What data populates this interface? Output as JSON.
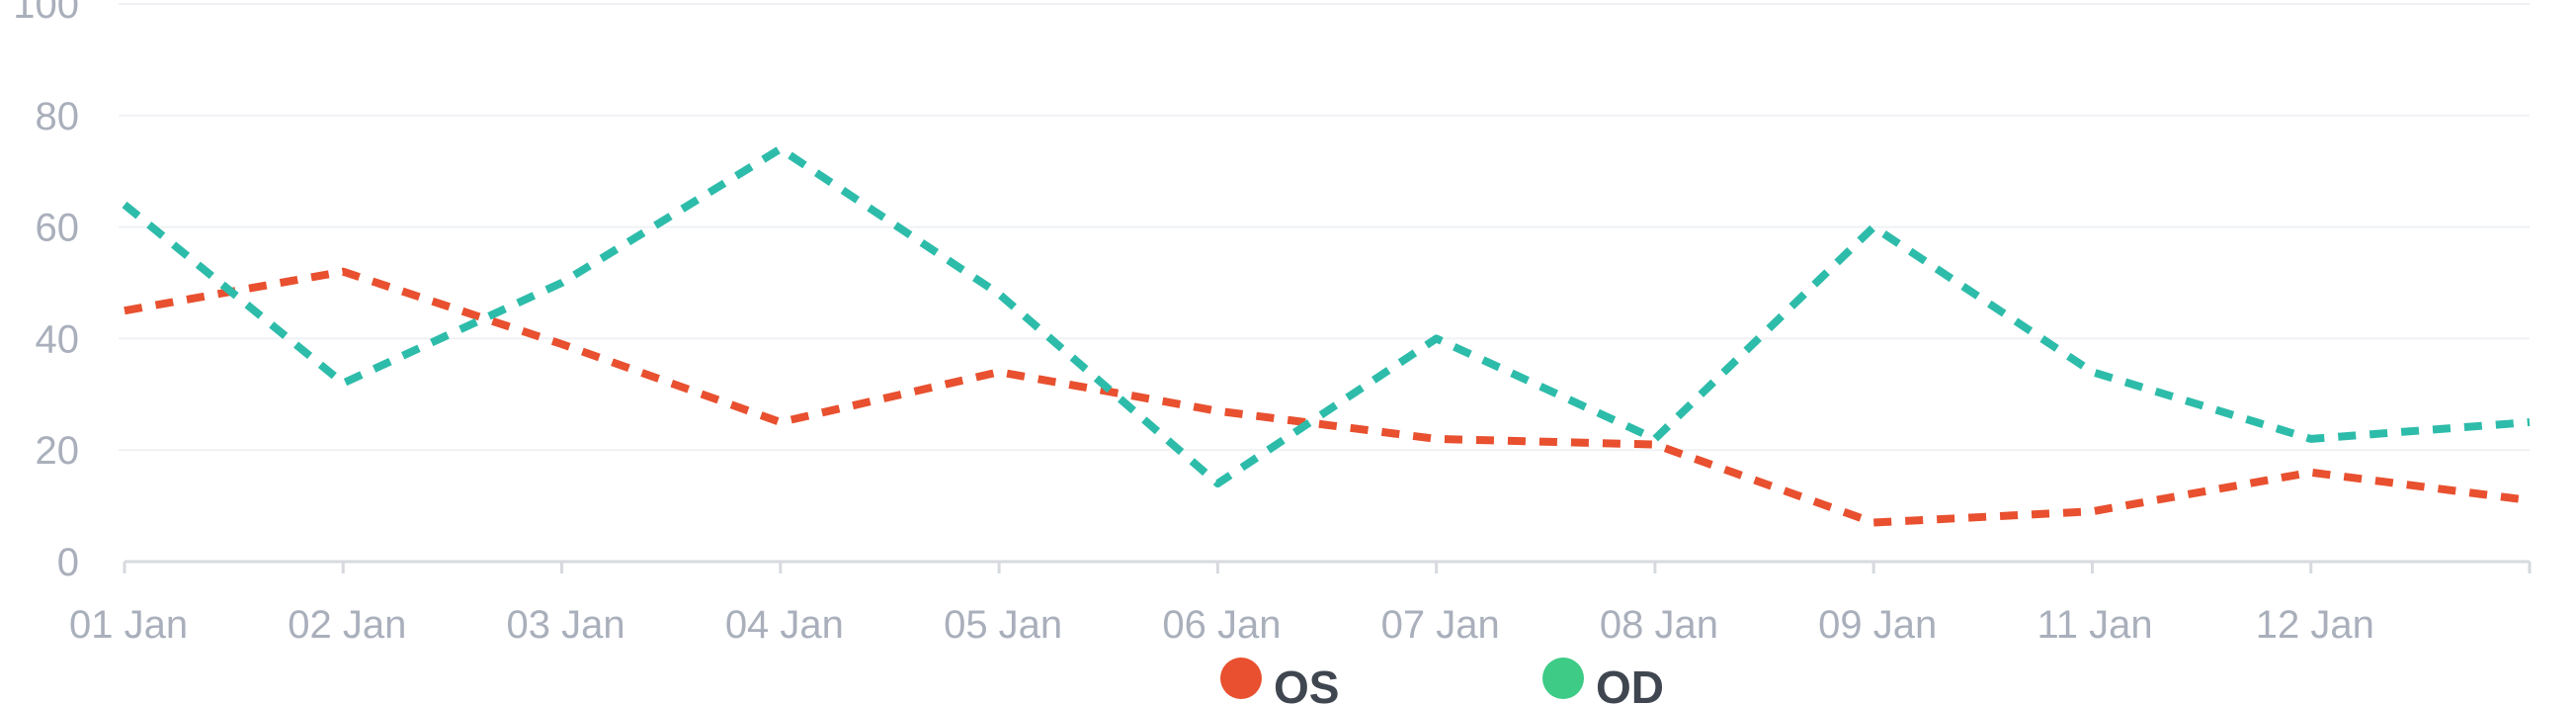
{
  "chart_data": {
    "type": "line",
    "categories": [
      "01 Jan",
      "02 Jan",
      "03 Jan",
      "04 Jan",
      "05 Jan",
      "06 Jan",
      "07 Jan",
      "08 Jan",
      "09 Jan",
      "11 Jan",
      "12 Jan",
      ""
    ],
    "series": [
      {
        "name": "OS",
        "color": "#e8502f",
        "values": [
          45,
          52,
          39,
          25,
          34,
          27,
          22,
          21,
          7,
          9,
          16,
          11
        ]
      },
      {
        "name": "OD",
        "color": "#2ebcaa",
        "legend_color": "#3ecb86",
        "values": [
          64,
          32,
          50,
          74,
          48,
          14,
          40,
          22,
          60,
          34,
          22,
          25
        ]
      }
    ],
    "ylim": [
      0,
      100
    ],
    "yticks": [
      0,
      20,
      40,
      60,
      80,
      100
    ],
    "grid": true,
    "line_style": "dashed",
    "legend_position": "bottom-center",
    "title": "",
    "xlabel": "",
    "ylabel": ""
  }
}
